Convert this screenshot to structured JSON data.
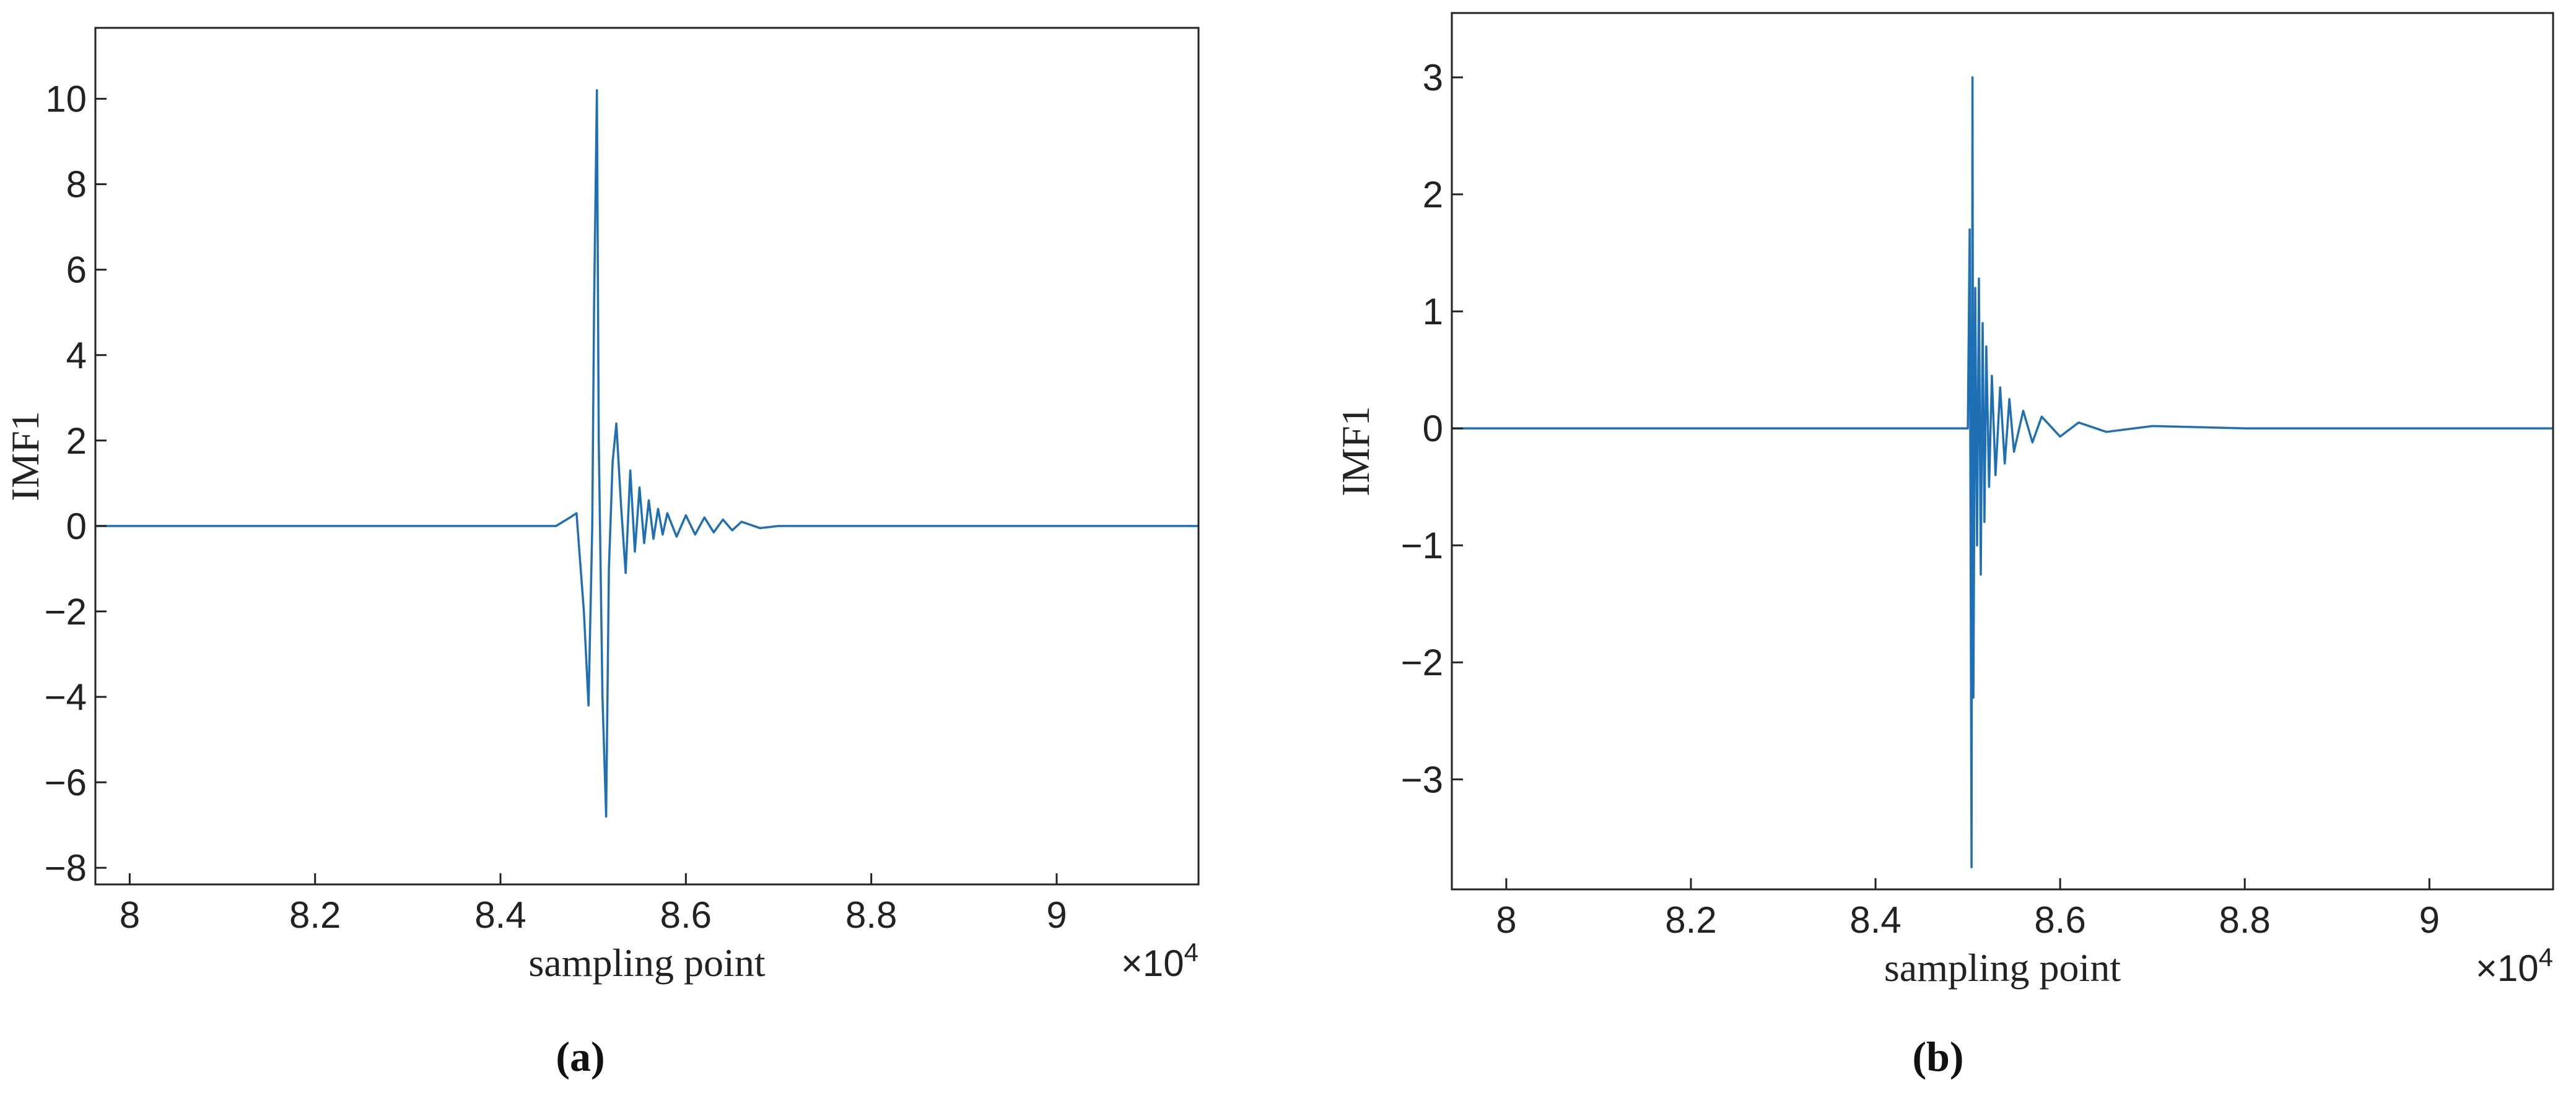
{
  "chart_data": [
    {
      "type": "line",
      "caption": "(a)",
      "xlabel": "sampling point",
      "ylabel": "IMF1",
      "x_multiplier": {
        "base": "×10",
        "exponent": "4"
      },
      "color": "#1f6fb4",
      "xlim": [
        7.963,
        9.153
      ],
      "ylim": [
        -8.39,
        11.66
      ],
      "xticks": [
        8,
        8.2,
        8.4,
        8.6,
        8.8,
        9
      ],
      "yticks": [
        {
          "value": -8,
          "label": "−8"
        },
        {
          "value": -6,
          "label": "−6"
        },
        {
          "value": -4,
          "label": "−4"
        },
        {
          "value": -2,
          "label": "−2"
        },
        0,
        2,
        4,
        6,
        8,
        10
      ],
      "x": [
        7.963,
        8.4,
        8.46,
        8.475,
        8.482,
        8.49,
        8.495,
        8.499,
        8.501,
        8.504,
        8.506,
        8.51,
        8.514,
        8.517,
        8.521,
        8.525,
        8.53,
        8.535,
        8.54,
        8.545,
        8.55,
        8.555,
        8.56,
        8.565,
        8.57,
        8.575,
        8.58,
        8.59,
        8.6,
        8.61,
        8.62,
        8.63,
        8.64,
        8.65,
        8.66,
        8.68,
        8.7,
        9.153
      ],
      "values": [
        0,
        0,
        0,
        0.2,
        0.3,
        -2,
        -4.2,
        0,
        5.2,
        10.2,
        2,
        -4,
        -6.8,
        -1,
        1.5,
        2.4,
        0.5,
        -1.1,
        1.3,
        -0.6,
        0.9,
        -0.4,
        0.6,
        -0.3,
        0.4,
        -0.2,
        0.3,
        -0.25,
        0.25,
        -0.2,
        0.2,
        -0.15,
        0.15,
        -0.1,
        0.1,
        -0.05,
        0,
        0
      ]
    },
    {
      "type": "line",
      "caption": "(b)",
      "xlabel": "sampling point",
      "ylabel": "IMF1",
      "x_multiplier": {
        "base": "×10",
        "exponent": "4"
      },
      "color": "#1f6fb4",
      "xlim": [
        7.941,
        9.134
      ],
      "ylim": [
        -3.94,
        3.55
      ],
      "xticks": [
        8,
        8.2,
        8.4,
        8.6,
        8.8,
        9
      ],
      "yticks": [
        {
          "value": -3,
          "label": "−3"
        },
        {
          "value": -2,
          "label": "−2"
        },
        {
          "value": -1,
          "label": "−1"
        },
        0,
        1,
        2,
        3
      ],
      "x": [
        7.941,
        8.5,
        8.502,
        8.504,
        8.505,
        8.506,
        8.508,
        8.51,
        8.512,
        8.514,
        8.516,
        8.518,
        8.52,
        8.523,
        8.526,
        8.53,
        8.535,
        8.54,
        8.545,
        8.55,
        8.56,
        8.57,
        8.58,
        8.6,
        8.62,
        8.65,
        8.7,
        8.8,
        9.134
      ],
      "values": [
        0,
        0,
        1.7,
        -3.75,
        3.0,
        -2.3,
        1.2,
        -1.0,
        1.28,
        -1.25,
        0.9,
        -0.8,
        0.7,
        -0.5,
        0.45,
        -0.4,
        0.35,
        -0.3,
        0.25,
        -0.2,
        0.15,
        -0.12,
        0.1,
        -0.07,
        0.05,
        -0.03,
        0.02,
        0,
        0
      ]
    }
  ]
}
